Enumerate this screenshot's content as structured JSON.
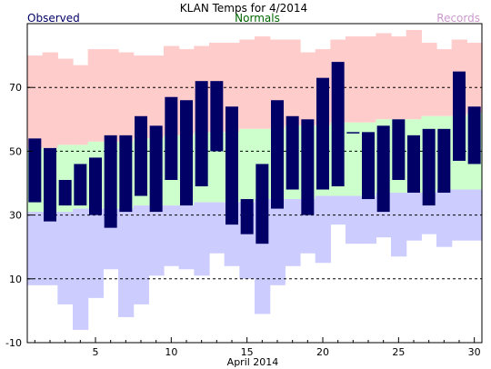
{
  "chart_data": {
    "type": "bar",
    "title": "KLAN Temps for 4/2014",
    "xlabel": "April 2014",
    "ylabel": "",
    "legend": [
      {
        "name": "Observed",
        "color": "#000066"
      },
      {
        "name": "Normals",
        "color": "#006600"
      },
      {
        "name": "Records",
        "color": "#cc99cc"
      }
    ],
    "colors": {
      "record_high_band": "#ffcccc",
      "normal_band": "#ccffcc",
      "record_low_band": "#ccccff",
      "observed_bar": "#000066",
      "grid": "#000000"
    },
    "ylim": [
      -10,
      90
    ],
    "yticks": [
      -10,
      10,
      30,
      50,
      70
    ],
    "xticks": [
      5,
      10,
      15,
      20,
      25,
      30
    ],
    "xlim": [
      0.5,
      30.5
    ],
    "grid": "dashed horizontal at 10, 30, 50, 70",
    "days": [
      1,
      2,
      3,
      4,
      5,
      6,
      7,
      8,
      9,
      10,
      11,
      12,
      13,
      14,
      15,
      16,
      17,
      18,
      19,
      20,
      21,
      22,
      23,
      24,
      25,
      26,
      27,
      28,
      29,
      30
    ],
    "observed_high": [
      54,
      51,
      41,
      46,
      48,
      55,
      55,
      61,
      58,
      67,
      66,
      72,
      72,
      64,
      35,
      46,
      66,
      61,
      60,
      73,
      78,
      56,
      56,
      58,
      60,
      55,
      57,
      57,
      75,
      64
    ],
    "observed_low": [
      34,
      28,
      33,
      33,
      30,
      26,
      31,
      36,
      31,
      41,
      33,
      39,
      50,
      27,
      24,
      21,
      32,
      38,
      30,
      38,
      39,
      56,
      35,
      31,
      41,
      37,
      33,
      37,
      47,
      46
    ],
    "normal_high": [
      51,
      51,
      52,
      52,
      53,
      53,
      53,
      54,
      54,
      55,
      55,
      56,
      56,
      56,
      57,
      57,
      57,
      58,
      58,
      58,
      59,
      59,
      59,
      60,
      60,
      60,
      61,
      61,
      61,
      62
    ],
    "normal_low": [
      31,
      31,
      31,
      32,
      32,
      32,
      32,
      33,
      33,
      33,
      33,
      34,
      34,
      34,
      34,
      35,
      35,
      35,
      35,
      36,
      36,
      36,
      36,
      37,
      37,
      37,
      37,
      38,
      38,
      38
    ],
    "record_high": [
      80,
      81,
      79,
      77,
      82,
      82,
      81,
      80,
      80,
      83,
      82,
      83,
      84,
      84,
      85,
      86,
      85,
      85,
      81,
      82,
      85,
      86,
      86,
      87,
      86,
      88,
      84,
      82,
      85,
      84
    ],
    "record_low": [
      8,
      8,
      2,
      -6,
      4,
      13,
      -2,
      2,
      11,
      14,
      13,
      11,
      18,
      14,
      10,
      -1,
      8,
      14,
      18,
      15,
      27,
      21,
      21,
      23,
      17,
      22,
      24,
      20,
      22,
      22
    ]
  }
}
